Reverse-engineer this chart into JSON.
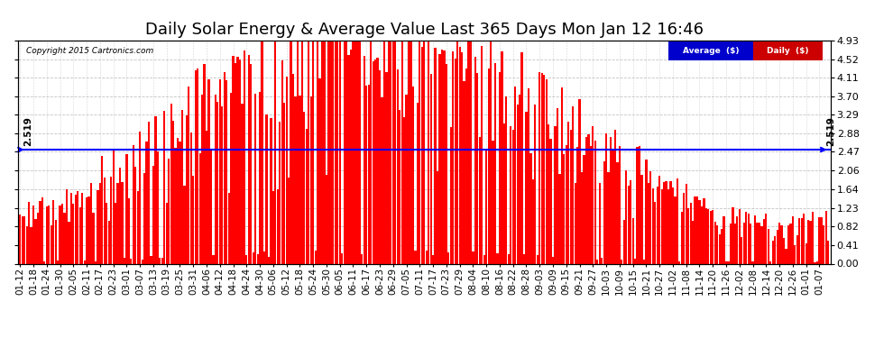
{
  "title": "Daily Solar Energy & Average Value Last 365 Days Mon Jan 12 16:46",
  "copyright": "Copyright 2015 Cartronics.com",
  "average_value": 2.519,
  "y_ticks": [
    0.0,
    0.41,
    0.82,
    1.23,
    1.64,
    2.06,
    2.47,
    2.88,
    3.29,
    3.7,
    4.11,
    4.52,
    4.93
  ],
  "y_max": 4.93,
  "y_min": 0.0,
  "bar_color": "#FF0000",
  "average_line_color": "#0000FF",
  "bg_color": "#FFFFFF",
  "plot_bg_color": "#FFFFFF",
  "grid_color": "#AAAAAA",
  "legend_avg_bg": "#0000CC",
  "legend_daily_bg": "#CC0000",
  "title_fontsize": 13,
  "tick_fontsize": 8,
  "n_days": 365,
  "x_tick_labels": [
    "01-12",
    "01-18",
    "01-24",
    "01-30",
    "02-05",
    "02-11",
    "02-17",
    "02-23",
    "03-01",
    "03-07",
    "03-13",
    "03-19",
    "03-25",
    "03-31",
    "04-06",
    "04-12",
    "04-18",
    "04-24",
    "04-30",
    "05-06",
    "05-12",
    "05-18",
    "05-24",
    "05-30",
    "06-05",
    "06-11",
    "06-17",
    "06-23",
    "06-29",
    "07-05",
    "07-11",
    "07-17",
    "07-23",
    "07-29",
    "08-04",
    "08-10",
    "08-16",
    "08-22",
    "08-28",
    "09-03",
    "09-09",
    "09-15",
    "09-21",
    "09-27",
    "10-03",
    "10-09",
    "10-15",
    "10-21",
    "10-27",
    "11-02",
    "11-08",
    "11-14",
    "11-20",
    "11-26",
    "12-02",
    "12-08",
    "12-14",
    "12-20",
    "12-26",
    "01-01",
    "01-07"
  ],
  "x_tick_positions": [
    0,
    6,
    12,
    18,
    24,
    30,
    36,
    42,
    48,
    54,
    60,
    66,
    72,
    78,
    84,
    90,
    96,
    102,
    108,
    114,
    120,
    126,
    132,
    138,
    144,
    150,
    156,
    162,
    168,
    174,
    180,
    186,
    192,
    198,
    204,
    210,
    216,
    222,
    228,
    234,
    240,
    246,
    252,
    258,
    264,
    270,
    276,
    282,
    288,
    294,
    300,
    306,
    312,
    318,
    324,
    330,
    336,
    342,
    348,
    354,
    360
  ],
  "seasonal_amplitude": 2.0,
  "seasonal_base": 2.8,
  "seasonal_peak_day": 160,
  "noise_seed": 42
}
